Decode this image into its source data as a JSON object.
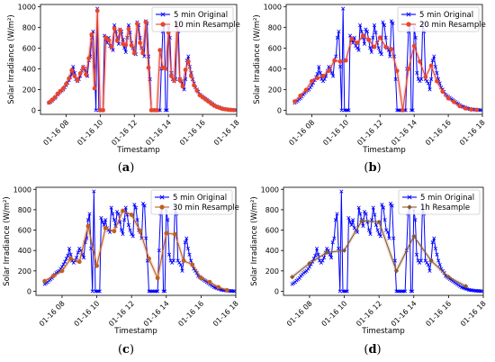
{
  "figure": {
    "captions": [
      "(a)",
      "(b)",
      "(c)",
      "(d)"
    ]
  },
  "chart_data": [
    {
      "type": "line",
      "panel": "(a)",
      "xlabel": "Timestamp",
      "ylabel": "Solar Irradiance (W/m²)",
      "xlim": [
        6.5,
        18.0
      ],
      "ylim": [
        -40,
        1020
      ],
      "yticks": [
        0,
        200,
        400,
        600,
        800,
        1000
      ],
      "xticks": [
        8,
        10,
        12,
        14,
        16,
        18
      ],
      "xtick_labels": [
        "01-16 08",
        "01-16 10",
        "01-16 12",
        "01-16 14",
        "01-16 16",
        "01-16 18"
      ],
      "legend_position": "upper right",
      "series": [
        {
          "name": "5 min Original",
          "color": "#0000ff",
          "marker": "x",
          "x": [
            7.0,
            7.083,
            7.167,
            7.25,
            7.333,
            7.417,
            7.5,
            7.583,
            7.667,
            7.75,
            7.833,
            7.917,
            8.0,
            8.083,
            8.167,
            8.25,
            8.333,
            8.417,
            8.5,
            8.583,
            8.667,
            8.75,
            8.833,
            8.917,
            9.0,
            9.083,
            9.167,
            9.25,
            9.333,
            9.417,
            9.5,
            9.583,
            9.667,
            9.75,
            9.833,
            9.917,
            10.0,
            10.083,
            10.167,
            10.25,
            10.333,
            10.417,
            10.5,
            10.583,
            10.667,
            10.75,
            10.833,
            10.917,
            11.0,
            11.083,
            11.167,
            11.25,
            11.333,
            11.417,
            11.5,
            11.583,
            11.667,
            11.75,
            11.833,
            11.917,
            12.0,
            12.083,
            12.167,
            12.25,
            12.333,
            12.417,
            12.5,
            12.583,
            12.667,
            12.75,
            12.833,
            12.917,
            13.0,
            13.083,
            13.167,
            13.25,
            13.333,
            13.417,
            13.5,
            13.583,
            13.667,
            13.75,
            13.833,
            13.917,
            14.0,
            14.083,
            14.167,
            14.25,
            14.333,
            14.417,
            14.5,
            14.583,
            14.667,
            14.75,
            14.833,
            14.917,
            15.0,
            15.083,
            15.167,
            15.25,
            15.333,
            15.417,
            15.5,
            15.583,
            15.667,
            15.75,
            15.833,
            15.917,
            16.0,
            16.083,
            16.167,
            16.25,
            16.333,
            16.417,
            16.5,
            16.583,
            16.667,
            16.75,
            16.833,
            16.917,
            17.0,
            17.083,
            17.167,
            17.25,
            17.333,
            17.417,
            17.5,
            17.583,
            17.667,
            17.75,
            17.833,
            17.917
          ],
          "y": [
            70,
            80,
            90,
            105,
            115,
            130,
            150,
            165,
            180,
            190,
            200,
            220,
            240,
            265,
            290,
            320,
            350,
            420,
            360,
            300,
            280,
            300,
            330,
            380,
            420,
            400,
            360,
            330,
            480,
            520,
            700,
            760,
            420,
            0,
            980,
            0,
            0,
            0,
            0,
            720,
            680,
            650,
            700,
            620,
            600,
            580,
            820,
            760,
            700,
            640,
            780,
            760,
            680,
            600,
            560,
            700,
            820,
            750,
            650,
            600,
            560,
            540,
            850,
            820,
            700,
            600,
            580,
            520,
            860,
            840,
            520,
            300,
            0,
            0,
            0,
            0,
            0,
            0,
            0,
            400,
            760,
            820,
            0,
            0,
            800,
            700,
            360,
            300,
            280,
            300,
            840,
            760,
            300,
            280,
            260,
            200,
            300,
            480,
            520,
            420,
            360,
            300,
            260,
            220,
            200,
            180,
            150,
            140,
            130,
            120,
            110,
            100,
            90,
            80,
            70,
            60,
            50,
            40,
            35,
            30,
            25,
            20,
            15,
            12,
            10,
            8,
            6,
            5,
            4,
            3,
            2,
            1
          ]
        },
        {
          "name": "10 min Resample",
          "color": "#e8452c",
          "marker": "o",
          "x": [
            7.0,
            7.167,
            7.333,
            7.5,
            7.667,
            7.833,
            8.0,
            8.167,
            8.333,
            8.5,
            8.667,
            8.833,
            9.0,
            9.167,
            9.333,
            9.5,
            9.667,
            9.833,
            10.0,
            10.167,
            10.333,
            10.5,
            10.667,
            10.833,
            11.0,
            11.167,
            11.333,
            11.5,
            11.667,
            11.833,
            12.0,
            12.167,
            12.333,
            12.5,
            12.667,
            12.833,
            13.0,
            13.167,
            13.333,
            13.5,
            13.667,
            13.833,
            14.0,
            14.167,
            14.333,
            14.5,
            14.667,
            14.833,
            15.0,
            15.167,
            15.333,
            15.5,
            15.667,
            15.833,
            16.0,
            16.167,
            16.333,
            16.5,
            16.667,
            16.833,
            17.0,
            17.167,
            17.333,
            17.5,
            17.667,
            17.833
          ],
          "y": [
            75,
            98,
            122,
            158,
            185,
            210,
            252,
            305,
            385,
            330,
            290,
            355,
            410,
            345,
            500,
            730,
            210,
            960,
            0,
            0,
            700,
            675,
            610,
            790,
            670,
            770,
            640,
            630,
            785,
            625,
            550,
            835,
            650,
            550,
            850,
            410,
            0,
            0,
            0,
            580,
            410,
            400,
            750,
            330,
            290,
            800,
            290,
            230,
            390,
            470,
            330,
            240,
            190,
            145,
            125,
            105,
            85,
            65,
            45,
            32,
            22,
            13,
            9,
            5,
            3,
            1
          ]
        }
      ]
    },
    {
      "type": "line",
      "panel": "(b)",
      "xlabel": "Timestamp",
      "ylabel": "Solar Irradiance (W/m²)",
      "xlim": [
        6.5,
        18.0
      ],
      "ylim": [
        -40,
        1020
      ],
      "yticks": [
        0,
        200,
        400,
        600,
        800,
        1000
      ],
      "xticks": [
        8,
        10,
        12,
        14,
        16,
        18
      ],
      "xtick_labels": [
        "01-16 08",
        "01-16 10",
        "01-16 12",
        "01-16 14",
        "01-16 16",
        "01-16 18"
      ],
      "legend_position": "upper right",
      "series": [
        {
          "name": "5 min Original",
          "color": "#0000ff",
          "marker": "x",
          "ref_series": "(a):0"
        },
        {
          "name": "20 min Resample",
          "color": "#e8452c",
          "marker": "o",
          "x": [
            7.0,
            7.333,
            7.667,
            8.0,
            8.333,
            8.667,
            9.0,
            9.333,
            9.667,
            10.0,
            10.333,
            10.667,
            11.0,
            11.333,
            11.667,
            12.0,
            12.333,
            12.667,
            13.0,
            13.333,
            13.667,
            14.0,
            14.333,
            14.667,
            15.0,
            15.333,
            15.667,
            16.0,
            16.333,
            16.667,
            17.0,
            17.333,
            17.667
          ],
          "y": [
            85,
            140,
            195,
            280,
            310,
            330,
            380,
            480,
            470,
            480,
            690,
            650,
            720,
            680,
            610,
            700,
            610,
            590,
            380,
            0,
            400,
            620,
            470,
            320,
            430,
            280,
            180,
            115,
            80,
            40,
            18,
            7,
            3
          ]
        }
      ]
    },
    {
      "type": "line",
      "panel": "(c)",
      "xlabel": "Timestamp",
      "ylabel": "Solar Irradiance (W/m²)",
      "xlim": [
        6.5,
        18.0
      ],
      "ylim": [
        -40,
        1020
      ],
      "yticks": [
        0,
        200,
        400,
        600,
        800,
        1000
      ],
      "xticks": [
        8,
        10,
        12,
        14,
        16,
        18
      ],
      "xtick_labels": [
        "01-16 08",
        "01-16 10",
        "01-16 12",
        "01-16 14",
        "01-16 16",
        "01-16 18"
      ],
      "legend_position": "upper right",
      "series": [
        {
          "name": "5 min Original",
          "color": "#0000ff",
          "marker": "x",
          "ref_series": "(a):0"
        },
        {
          "name": "30 min Resample",
          "color": "#c0601e",
          "marker": "o",
          "x": [
            7.0,
            7.5,
            8.0,
            8.5,
            9.0,
            9.5,
            10.0,
            10.5,
            11.0,
            11.5,
            12.0,
            12.5,
            13.0,
            13.5,
            14.0,
            14.5,
            15.0,
            15.5,
            16.0,
            16.5,
            17.0,
            17.5
          ],
          "y": [
            100,
            150,
            200,
            320,
            290,
            640,
            250,
            620,
            590,
            790,
            750,
            590,
            320,
            130,
            570,
            560,
            300,
            260,
            130,
            90,
            40,
            10
          ]
        }
      ]
    },
    {
      "type": "line",
      "panel": "(d)",
      "xlabel": "Timestamp",
      "ylabel": "Solar Irradiance (W/m²)",
      "xlim": [
        6.5,
        18.0
      ],
      "ylim": [
        -40,
        1020
      ],
      "yticks": [
        0,
        200,
        400,
        600,
        800,
        1000
      ],
      "xticks": [
        8,
        10,
        12,
        14,
        16,
        18
      ],
      "xtick_labels": [
        "01-16 08",
        "01-16 10",
        "01-16 12",
        "01-16 14",
        "01-16 16",
        "01-16 18"
      ],
      "legend_position": "upper right",
      "series": [
        {
          "name": "5 min Original",
          "color": "#0000ff",
          "marker": "x",
          "ref_series": "(a):0"
        },
        {
          "name": "1h Resample",
          "color": "#8b5a2b",
          "marker": "D",
          "x": [
            7.0,
            8.0,
            9.0,
            10.0,
            11.0,
            12.0,
            13.0,
            14.0,
            15.0,
            16.0,
            17.0
          ],
          "y": [
            140,
            275,
            380,
            400,
            690,
            680,
            200,
            540,
            300,
            140,
            50
          ]
        }
      ]
    }
  ]
}
